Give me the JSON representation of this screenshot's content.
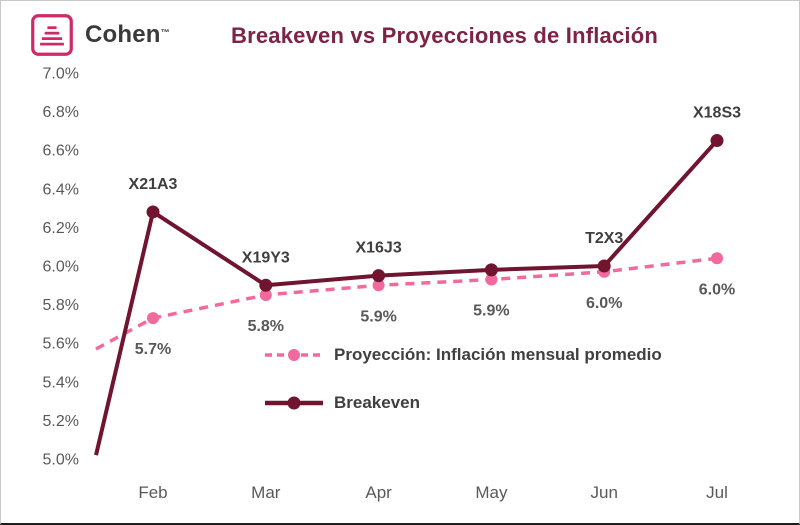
{
  "logo": {
    "text": "Cohen",
    "trademark": "™"
  },
  "header": {
    "title": "Breakeven vs Proyecciones de Inflación"
  },
  "colors": {
    "title": "#7c2347",
    "axis_text": "#595959",
    "value_label": "#595959",
    "code_label": "#3f3f3f",
    "legend_text": "#404040",
    "logo_accent": "#ce2a68",
    "logo_text": "#3a3a3c",
    "projection_pink": "#f2699e",
    "breakeven_maroon": "#701430",
    "border": "#c8c8c8"
  },
  "chart_data": {
    "type": "line",
    "title": "Breakeven vs Proyecciones de Inflación",
    "categories": [
      "Feb",
      "Mar",
      "Apr",
      "May",
      "Jun",
      "Jul"
    ],
    "y_ticks": [
      "5.0%",
      "5.2%",
      "5.4%",
      "5.6%",
      "5.8%",
      "6.0%",
      "6.2%",
      "6.4%",
      "6.6%",
      "6.8%",
      "7.0%"
    ],
    "ylim": [
      5.0,
      7.0
    ],
    "grid": false,
    "legend_position": "inside-center",
    "series": [
      {
        "name": "Proyección: Inflación mensual promedio",
        "style": "dashed",
        "color": "#f2699e",
        "lead_in_value": 5.57,
        "values": [
          5.73,
          5.85,
          5.9,
          5.93,
          5.97,
          6.04
        ],
        "point_labels": [
          "5.7%",
          "5.8%",
          "5.9%",
          "5.9%",
          "6.0%",
          "6.0%"
        ],
        "label_position": "below"
      },
      {
        "name": "Breakeven",
        "style": "solid",
        "color": "#701430",
        "lead_in_value": 5.02,
        "values": [
          6.28,
          5.9,
          5.95,
          5.98,
          6.0,
          6.65
        ],
        "point_labels": [
          "X21A3",
          "X19Y3",
          "X16J3",
          "",
          "T2X3",
          "X18S3"
        ],
        "label_position": "above"
      }
    ]
  }
}
